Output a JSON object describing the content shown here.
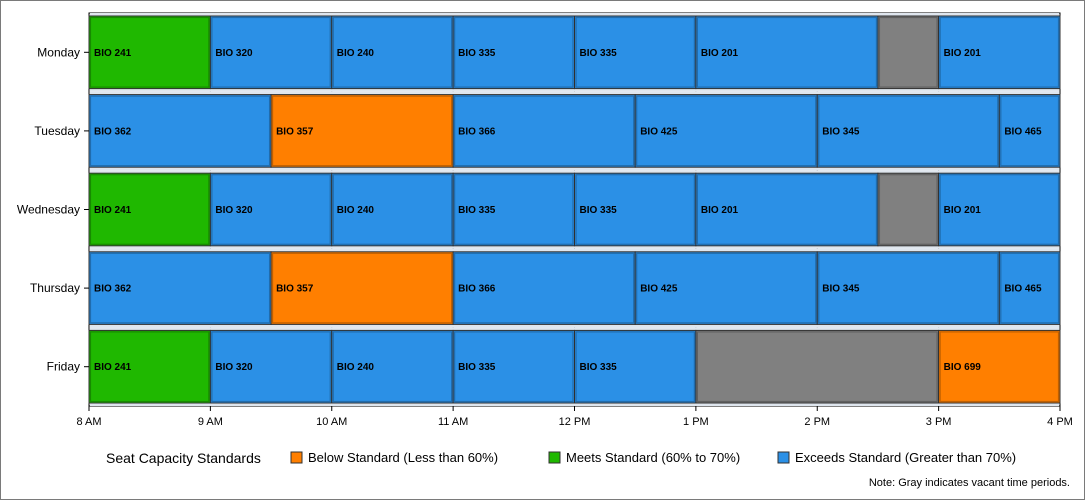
{
  "chart_data": {
    "type": "bar",
    "orientation": "horizontal-timeline",
    "title": "",
    "xlabel": "",
    "ylabel": "",
    "x_ticks": [
      "8 AM",
      "9 AM",
      "10 AM",
      "11 AM",
      "12 PM",
      "1 PM",
      "2 PM",
      "3 PM",
      "4 PM"
    ],
    "x_range_hours": [
      8,
      16
    ],
    "days": [
      {
        "day": "Monday",
        "segments": [
          {
            "course": "BIO 241",
            "start": 8.0,
            "end": 9.0,
            "status": "meets"
          },
          {
            "course": "BIO 320",
            "start": 9.0,
            "end": 10.0,
            "status": "exceeds"
          },
          {
            "course": "BIO 240",
            "start": 10.0,
            "end": 11.0,
            "status": "exceeds"
          },
          {
            "course": "BIO 335",
            "start": 11.0,
            "end": 12.0,
            "status": "exceeds"
          },
          {
            "course": "BIO 335",
            "start": 12.0,
            "end": 13.0,
            "status": "exceeds"
          },
          {
            "course": "BIO 201",
            "start": 13.0,
            "end": 14.5,
            "status": "exceeds"
          },
          {
            "course": "",
            "start": 14.5,
            "end": 15.0,
            "status": "vacant"
          },
          {
            "course": "BIO 201",
            "start": 15.0,
            "end": 16.0,
            "status": "exceeds"
          }
        ]
      },
      {
        "day": "Tuesday",
        "segments": [
          {
            "course": "BIO 362",
            "start": 8.0,
            "end": 9.5,
            "status": "exceeds"
          },
          {
            "course": "BIO 357",
            "start": 9.5,
            "end": 11.0,
            "status": "below"
          },
          {
            "course": "BIO 366",
            "start": 11.0,
            "end": 12.5,
            "status": "exceeds"
          },
          {
            "course": "BIO 425",
            "start": 12.5,
            "end": 14.0,
            "status": "exceeds"
          },
          {
            "course": "BIO 345",
            "start": 14.0,
            "end": 15.5,
            "status": "exceeds"
          },
          {
            "course": "BIO 465",
            "start": 15.5,
            "end": 16.0,
            "status": "exceeds"
          }
        ]
      },
      {
        "day": "Wednesday",
        "segments": [
          {
            "course": "BIO 241",
            "start": 8.0,
            "end": 9.0,
            "status": "meets"
          },
          {
            "course": "BIO 320",
            "start": 9.0,
            "end": 10.0,
            "status": "exceeds"
          },
          {
            "course": "BIO 240",
            "start": 10.0,
            "end": 11.0,
            "status": "exceeds"
          },
          {
            "course": "BIO 335",
            "start": 11.0,
            "end": 12.0,
            "status": "exceeds"
          },
          {
            "course": "BIO 335",
            "start": 12.0,
            "end": 13.0,
            "status": "exceeds"
          },
          {
            "course": "BIO 201",
            "start": 13.0,
            "end": 14.5,
            "status": "exceeds"
          },
          {
            "course": "",
            "start": 14.5,
            "end": 15.0,
            "status": "vacant"
          },
          {
            "course": "BIO 201",
            "start": 15.0,
            "end": 16.0,
            "status": "exceeds"
          }
        ]
      },
      {
        "day": "Thursday",
        "segments": [
          {
            "course": "BIO 362",
            "start": 8.0,
            "end": 9.5,
            "status": "exceeds"
          },
          {
            "course": "BIO 357",
            "start": 9.5,
            "end": 11.0,
            "status": "below"
          },
          {
            "course": "BIO 366",
            "start": 11.0,
            "end": 12.5,
            "status": "exceeds"
          },
          {
            "course": "BIO 425",
            "start": 12.5,
            "end": 14.0,
            "status": "exceeds"
          },
          {
            "course": "BIO 345",
            "start": 14.0,
            "end": 15.5,
            "status": "exceeds"
          },
          {
            "course": "BIO 465",
            "start": 15.5,
            "end": 16.0,
            "status": "exceeds"
          }
        ]
      },
      {
        "day": "Friday",
        "segments": [
          {
            "course": "BIO 241",
            "start": 8.0,
            "end": 9.0,
            "status": "meets"
          },
          {
            "course": "BIO 320",
            "start": 9.0,
            "end": 10.0,
            "status": "exceeds"
          },
          {
            "course": "BIO 240",
            "start": 10.0,
            "end": 11.0,
            "status": "exceeds"
          },
          {
            "course": "BIO 335",
            "start": 11.0,
            "end": 12.0,
            "status": "exceeds"
          },
          {
            "course": "BIO 335",
            "start": 12.0,
            "end": 13.0,
            "status": "exceeds"
          },
          {
            "course": "",
            "start": 13.0,
            "end": 15.0,
            "status": "vacant"
          },
          {
            "course": "BIO 699",
            "start": 15.0,
            "end": 16.0,
            "status": "below"
          }
        ]
      }
    ],
    "status_colors": {
      "below": "#ff7f00",
      "meets": "#1fb800",
      "exceeds": "#2b90e6",
      "vacant": "#808080"
    },
    "grid": true,
    "legend_position": "bottom"
  },
  "legend": {
    "title": "Seat Capacity Standards",
    "items": [
      {
        "key": "below",
        "label": "Below Standard (Less than 60%)"
      },
      {
        "key": "meets",
        "label": "Meets Standard (60% to 70%)"
      },
      {
        "key": "exceeds",
        "label": "Exceeds Standard (Greater than 70%)"
      }
    ]
  },
  "note": "Note: Gray indicates vacant time periods."
}
